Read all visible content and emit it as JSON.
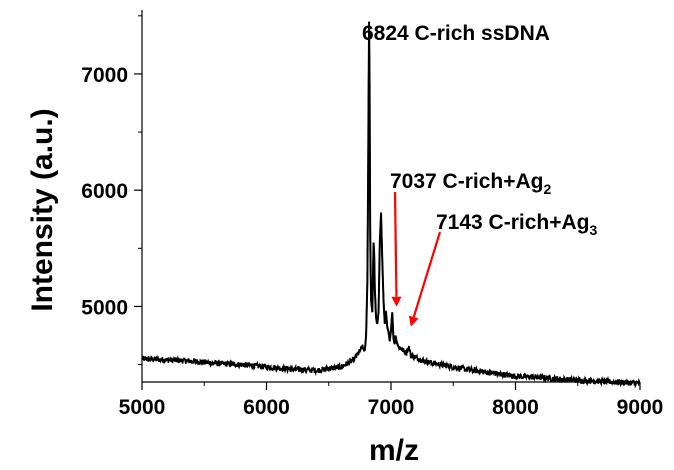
{
  "chart_data": {
    "type": "line",
    "title": "",
    "xlabel": "m/z",
    "ylabel": "Intensity (a.u.)",
    "xlim": [
      5000,
      9000
    ],
    "ylim": [
      4350,
      7550
    ],
    "x_ticks": [
      5000,
      6000,
      7000,
      8000,
      9000
    ],
    "x_tick_labels": [
      "5000",
      "6000",
      "7000",
      "8000",
      "9000"
    ],
    "y_ticks": [
      5000,
      6000,
      7000
    ],
    "y_tick_labels": [
      "5000",
      "6000",
      "7000"
    ],
    "grid": false,
    "legend": "none",
    "line_color": "#000000",
    "arrow_color": "#ff0000",
    "noise_amplitude": 25,
    "series": [
      {
        "x": [
          5000,
          5200,
          5400,
          5600,
          5800,
          6000,
          6200,
          6400,
          6600,
          6700,
          6740,
          6770,
          6790,
          6800,
          6810,
          6815,
          6820,
          6824,
          6828,
          6833,
          6840,
          6850,
          6860,
          6865,
          6870,
          6880,
          6890,
          6900,
          6910,
          6920,
          6930,
          6940,
          6950,
          6960,
          6970,
          6980,
          6990,
          7000,
          7010,
          7020,
          7030,
          7037,
          7045,
          7060,
          7080,
          7100,
          7120,
          7143,
          7160,
          7200,
          7300,
          7400,
          7500,
          7600,
          7800,
          8000,
          8200,
          8400,
          8600,
          8800,
          9000
        ],
        "y": [
          4550,
          4540,
          4530,
          4510,
          4500,
          4480,
          4460,
          4450,
          4480,
          4540,
          4600,
          4650,
          4620,
          4750,
          5200,
          5900,
          6800,
          7450,
          6900,
          5600,
          5050,
          4950,
          5550,
          5450,
          5150,
          4900,
          4850,
          4950,
          5550,
          5800,
          5400,
          5050,
          4850,
          4950,
          4820,
          4780,
          4700,
          4800,
          4950,
          4720,
          4680,
          4750,
          4700,
          4650,
          4640,
          4620,
          4600,
          4650,
          4580,
          4560,
          4520,
          4500,
          4480,
          4460,
          4430,
          4400,
          4390,
          4370,
          4360,
          4350,
          4340
        ]
      }
    ],
    "annotations": [
      {
        "text": "6824 C-rich ssDNA",
        "x": 6824,
        "y": 7450
      },
      {
        "text": "7037 C-rich+Ag",
        "subscript": "2",
        "x": 7037,
        "y": 4980
      },
      {
        "text": "7143 C-rich+Ag",
        "subscript": "3",
        "x": 7143,
        "y": 4740
      }
    ]
  }
}
